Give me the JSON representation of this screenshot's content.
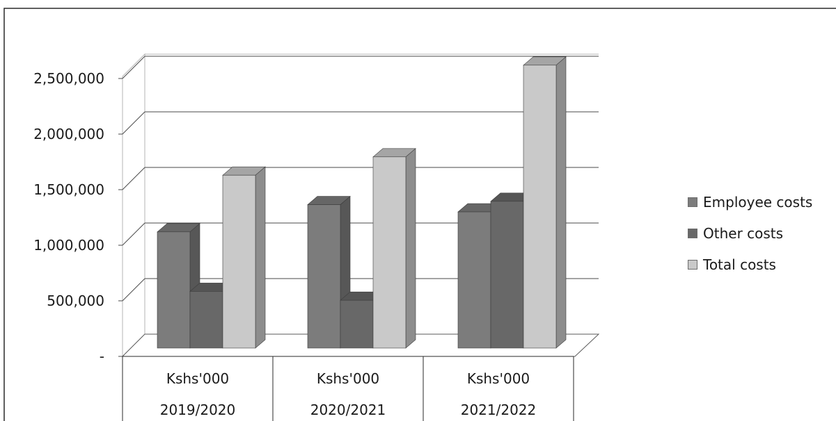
{
  "chart_data": {
    "type": "bar",
    "categories": [
      [
        "Kshs'000",
        "2019/2020"
      ],
      [
        "Kshs'000",
        "2020/2021"
      ],
      [
        "Kshs'000",
        "2021/2022"
      ]
    ],
    "series": [
      {
        "name": "Employee costs",
        "values": [
          1045000,
          1290000,
          1225000
        ],
        "color": "#7c7c7c"
      },
      {
        "name": "Other costs",
        "values": [
          510000,
          430000,
          1320000
        ],
        "color": "#686868"
      },
      {
        "name": "Total costs",
        "values": [
          1555000,
          1720000,
          2545000
        ],
        "color": "#c9c9c9"
      }
    ],
    "ylim": [
      0,
      2500000
    ],
    "yticks": [
      "-",
      "500,000",
      "1,000,000",
      "1,500,000",
      "2,000,000",
      "2,500,000"
    ],
    "grid": true,
    "legend_position": "right",
    "style": "3d-clustered-column"
  }
}
